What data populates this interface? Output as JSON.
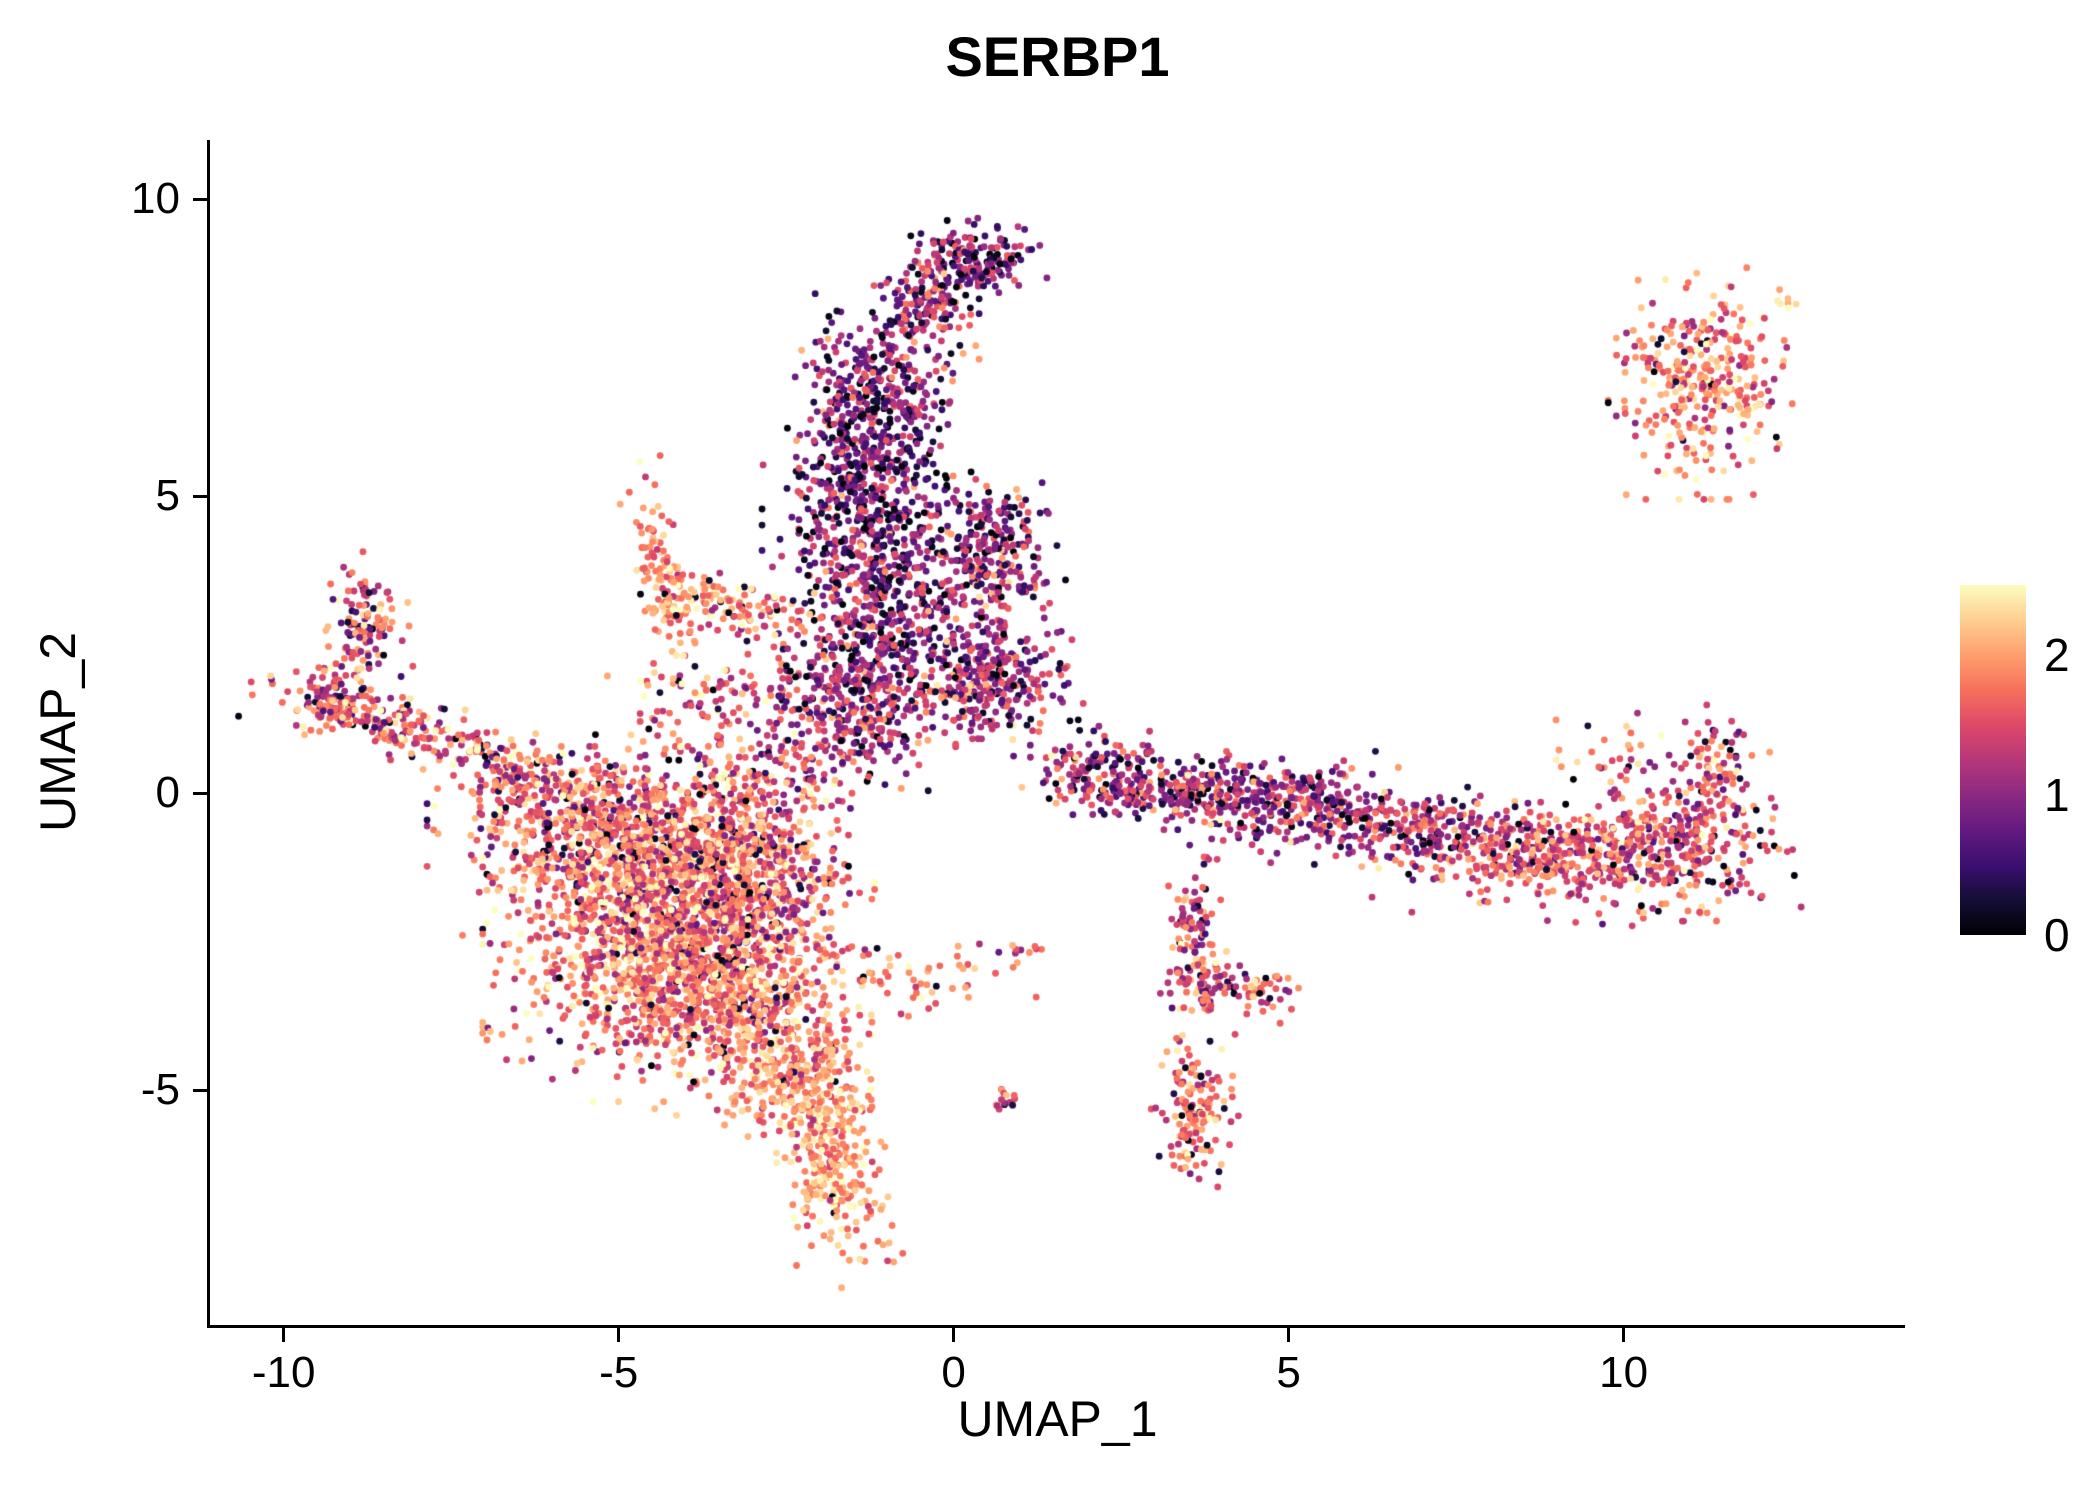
{
  "chart_data": {
    "type": "scatter",
    "title": "SERBP1",
    "xlabel": "UMAP_1",
    "ylabel": "UMAP_2",
    "xlim": [
      -11.1,
      14.2
    ],
    "ylim": [
      -8.95,
      11.0
    ],
    "x_ticks": [
      -10,
      -5,
      0,
      5,
      10
    ],
    "y_ticks": [
      10,
      5,
      0,
      -5
    ],
    "grid": false,
    "legend_position": "right",
    "point_radius": 3.4,
    "seed": 20240521,
    "colorbar": {
      "ticks": [
        0,
        1,
        2
      ],
      "domain": [
        0,
        2.5
      ],
      "stops": [
        [
          0.0,
          "#000004"
        ],
        [
          0.1,
          "#140e36"
        ],
        [
          0.2,
          "#3b0f70"
        ],
        [
          0.3,
          "#641a80"
        ],
        [
          0.4,
          "#8c2981"
        ],
        [
          0.5,
          "#b73779"
        ],
        [
          0.6,
          "#de4968"
        ],
        [
          0.7,
          "#f7705c"
        ],
        [
          0.8,
          "#fe9f6d"
        ],
        [
          0.9,
          "#fecf92"
        ],
        [
          1.0,
          "#fcfdbf"
        ]
      ]
    },
    "clusters": [
      {
        "name": "main-blob-core",
        "cx": -4.3,
        "cy": -2.2,
        "sx": 1.05,
        "sy": 1.15,
        "n": 1700,
        "vmean": 1.75,
        "vsd": 0.45,
        "dark": 0.05
      },
      {
        "name": "main-blob-upper",
        "cx": -5.0,
        "cy": -0.7,
        "sx": 1.1,
        "sy": 0.65,
        "n": 600,
        "vmean": 1.7,
        "vsd": 0.45,
        "dark": 0.06
      },
      {
        "name": "main-blob-right",
        "cx": -3.0,
        "cy": -1.2,
        "sx": 0.7,
        "sy": 0.9,
        "n": 450,
        "vmean": 1.7,
        "vsd": 0.5,
        "dark": 0.07
      },
      {
        "name": "main-blob-south",
        "cx": -3.3,
        "cy": -3.6,
        "sx": 0.8,
        "sy": 0.7,
        "n": 450,
        "vmean": 1.85,
        "vsd": 0.4,
        "dark": 0.04
      },
      {
        "name": "tail-neck",
        "cx": -2.4,
        "cy": -4.7,
        "sx": 0.45,
        "sy": 0.45,
        "n": 180,
        "vmean": 1.9,
        "vsd": 0.35,
        "dark": 0.03
      },
      {
        "name": "bottom-tail",
        "cx": -1.8,
        "cy": -6.1,
        "sx": 0.33,
        "sy": 0.85,
        "n": 330,
        "angle": 10,
        "vmean": 2.0,
        "vsd": 0.33,
        "dark": 0.02
      },
      {
        "name": "left-arm",
        "cx": -7.9,
        "cy": 1.0,
        "sx": 1.05,
        "sy": 0.22,
        "n": 230,
        "angle": -18,
        "vmean": 1.65,
        "vsd": 0.45,
        "dark": 0.06
      },
      {
        "name": "left-arm-tip",
        "cx": -9.2,
        "cy": 1.6,
        "sx": 0.25,
        "sy": 0.3,
        "n": 90,
        "vmean": 1.5,
        "vsd": 0.5,
        "dark": 0.1
      },
      {
        "name": "left-clump",
        "cx": -8.8,
        "cy": 2.9,
        "sx": 0.28,
        "sy": 0.45,
        "n": 110,
        "vmean": 1.55,
        "vsd": 0.5,
        "dark": 0.1
      },
      {
        "name": "arm-blob-bridge",
        "cx": -6.3,
        "cy": 0.2,
        "sx": 0.6,
        "sy": 0.3,
        "n": 120,
        "vmean": 1.6,
        "vsd": 0.45,
        "dark": 0.06
      },
      {
        "name": "triangle-left-edge",
        "cx": -4.35,
        "cy": 3.7,
        "sx": 0.16,
        "sy": 0.75,
        "n": 120,
        "angle": 12,
        "vmean": 1.9,
        "vsd": 0.35,
        "dark": 0.02
      },
      {
        "name": "triangle-bottom-edge",
        "cx": -3.4,
        "cy": 3.2,
        "sx": 0.55,
        "sy": 0.18,
        "n": 100,
        "angle": -15,
        "vmean": 1.85,
        "vsd": 0.38,
        "dark": 0.03
      },
      {
        "name": "triangle-blob-sparse",
        "cx": -4.0,
        "cy": 1.6,
        "sx": 0.5,
        "sy": 0.5,
        "n": 50,
        "vmean": 1.7,
        "vsd": 0.45,
        "dark": 0.06
      },
      {
        "name": "mid-sparse",
        "cx": -2.3,
        "cy": 2.6,
        "sx": 0.5,
        "sy": 0.6,
        "n": 60,
        "vmean": 1.4,
        "vsd": 0.5,
        "dark": 0.1
      },
      {
        "name": "column-top-knob",
        "cx": 0.3,
        "cy": 9.0,
        "sx": 0.42,
        "sy": 0.28,
        "n": 170,
        "vmean": 0.95,
        "vsd": 0.5,
        "dark": 0.15
      },
      {
        "name": "column-top-stem",
        "cx": -0.4,
        "cy": 8.1,
        "sx": 0.3,
        "sy": 0.45,
        "n": 130,
        "vmean": 1.05,
        "vsd": 0.5,
        "dark": 0.12
      },
      {
        "name": "column-upper",
        "cx": -1.1,
        "cy": 6.6,
        "sx": 0.55,
        "sy": 0.75,
        "n": 380,
        "vmean": 1.0,
        "vsd": 0.48,
        "dark": 0.16
      },
      {
        "name": "column-mid",
        "cx": -1.3,
        "cy": 4.9,
        "sx": 0.6,
        "sy": 0.7,
        "n": 380,
        "vmean": 0.9,
        "vsd": 0.48,
        "dark": 0.2
      },
      {
        "name": "column-lower",
        "cx": -1.0,
        "cy": 3.0,
        "sx": 0.6,
        "sy": 0.85,
        "n": 420,
        "vmean": 1.0,
        "vsd": 0.48,
        "dark": 0.15
      },
      {
        "name": "column-neck",
        "cx": -1.4,
        "cy": 1.4,
        "sx": 0.55,
        "sy": 0.55,
        "n": 240,
        "vmean": 1.2,
        "vsd": 0.5,
        "dark": 0.1
      },
      {
        "name": "right-lobe-upper",
        "cx": 0.5,
        "cy": 4.0,
        "sx": 0.45,
        "sy": 0.6,
        "n": 260,
        "vmean": 1.1,
        "vsd": 0.48,
        "dark": 0.12
      },
      {
        "name": "right-lobe-lower",
        "cx": 0.55,
        "cy": 1.9,
        "sx": 0.55,
        "sy": 0.5,
        "n": 300,
        "vmean": 1.2,
        "vsd": 0.5,
        "dark": 0.1
      },
      {
        "name": "left-sparse-bridge",
        "cx": -2.6,
        "cy": 1.0,
        "sx": 0.8,
        "sy": 0.7,
        "n": 150,
        "vmean": 1.4,
        "vsd": 0.5,
        "dark": 0.07
      },
      {
        "name": "band-w1",
        "cx": 2.2,
        "cy": 0.35,
        "sx": 0.5,
        "sy": 0.3,
        "n": 140,
        "vmean": 1.2,
        "vsd": 0.5,
        "dark": 0.1
      },
      {
        "name": "band-w2",
        "cx": 3.5,
        "cy": 0.05,
        "sx": 0.7,
        "sy": 0.28,
        "n": 190,
        "vmean": 1.2,
        "vsd": 0.5,
        "dark": 0.1
      },
      {
        "name": "band-mid",
        "cx": 5.0,
        "cy": -0.15,
        "sx": 0.8,
        "sy": 0.33,
        "n": 260,
        "vmean": 1.1,
        "vsd": 0.48,
        "dark": 0.12
      },
      {
        "name": "band-e1",
        "cx": 6.9,
        "cy": -0.6,
        "sx": 0.95,
        "sy": 0.33,
        "n": 260,
        "angle": -6,
        "vmean": 1.35,
        "vsd": 0.48,
        "dark": 0.08
      },
      {
        "name": "band-e2",
        "cx": 8.9,
        "cy": -1.05,
        "sx": 1.0,
        "sy": 0.42,
        "n": 360,
        "angle": -4,
        "vmean": 1.6,
        "vsd": 0.42,
        "dark": 0.05
      },
      {
        "name": "band-e3",
        "cx": 10.7,
        "cy": -0.85,
        "sx": 0.75,
        "sy": 0.5,
        "n": 320,
        "vmean": 1.55,
        "vsd": 0.45,
        "dark": 0.06
      },
      {
        "name": "band-ne-tip",
        "cx": 11.4,
        "cy": 0.5,
        "sx": 0.3,
        "sy": 0.4,
        "n": 80,
        "vmean": 1.6,
        "vsd": 0.45,
        "dark": 0.05
      },
      {
        "name": "band-n-sparse",
        "cx": 9.8,
        "cy": 0.6,
        "sx": 0.5,
        "sy": 0.3,
        "n": 30,
        "vmean": 1.5,
        "vsd": 0.5,
        "dark": 0.08
      },
      {
        "name": "chain-south",
        "cx": 3.55,
        "cy": -2.3,
        "sx": 0.17,
        "sy": 0.6,
        "n": 90,
        "angle": -8,
        "vmean": 1.55,
        "vsd": 0.45,
        "dark": 0.07
      },
      {
        "name": "chain-knot",
        "cx": 3.8,
        "cy": -3.2,
        "sx": 0.22,
        "sy": 0.25,
        "n": 70,
        "vmean": 1.6,
        "vsd": 0.45,
        "dark": 0.06
      },
      {
        "name": "south-knot2",
        "cx": 4.55,
        "cy": -3.35,
        "sx": 0.25,
        "sy": 0.2,
        "n": 40,
        "vmean": 1.6,
        "vsd": 0.45,
        "dark": 0.06
      },
      {
        "name": "south-cluster",
        "cx": 3.6,
        "cy": -5.3,
        "sx": 0.25,
        "sy": 0.55,
        "n": 150,
        "vmean": 1.75,
        "vsd": 0.42,
        "dark": 0.05
      },
      {
        "name": "tiny-pair",
        "cx": 0.75,
        "cy": -5.15,
        "sx": 0.12,
        "sy": 0.12,
        "n": 14,
        "vmean": 1.6,
        "vsd": 0.4,
        "dark": 0.05
      },
      {
        "name": "tiny-mid",
        "cx": 0.9,
        "cy": -2.7,
        "sx": 0.2,
        "sy": 0.15,
        "n": 12,
        "vmean": 1.55,
        "vsd": 0.45,
        "dark": 0.05
      },
      {
        "name": "sparse-trail",
        "cx": -0.7,
        "cy": -3.1,
        "sx": 0.75,
        "sy": 0.25,
        "n": 55,
        "vmean": 1.9,
        "vsd": 0.35,
        "dark": 0.03
      },
      {
        "name": "topright-cluster",
        "cx": 11.2,
        "cy": 6.9,
        "sx": 0.55,
        "sy": 0.75,
        "n": 300,
        "vmean": 1.8,
        "vsd": 0.42,
        "dark": 0.03
      },
      {
        "name": "topright-sparse",
        "cx": 10.6,
        "cy": 7.3,
        "sx": 0.5,
        "sy": 0.5,
        "n": 40,
        "vmean": 1.7,
        "vsd": 0.45,
        "dark": 0.05
      },
      {
        "name": "topright-pair",
        "cx": 12.4,
        "cy": 8.3,
        "sx": 0.15,
        "sy": 0.12,
        "n": 7,
        "vmean": 2.3,
        "vsd": 0.15,
        "dark": 0.0
      }
    ]
  }
}
